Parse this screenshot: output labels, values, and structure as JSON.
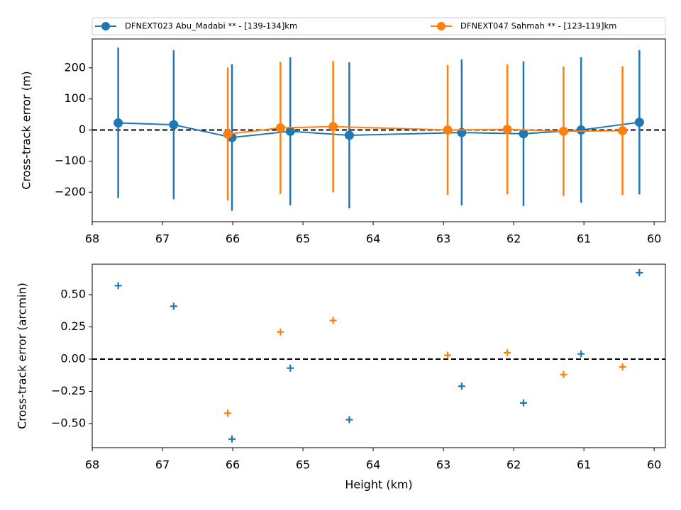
{
  "chart_data": [
    {
      "type": "line",
      "y_label": "Cross-track error (m)",
      "x": null,
      "xlim": [
        68,
        59.84
      ],
      "xticks": [
        68,
        67,
        66,
        65,
        64,
        63,
        62,
        61,
        60
      ],
      "ylim": [
        -295,
        293
      ],
      "yticks": [
        {
          "value": -200,
          "label": "−200"
        },
        {
          "value": -100,
          "label": "−100"
        },
        0,
        100,
        200
      ],
      "hline": 0,
      "legend": "top",
      "series": [
        {
          "name": "DFNEXT023 Abu_Madabi **  - [139-134]km",
          "color": "#1f77b4",
          "x": [
            67.63,
            66.84,
            66.01,
            65.18,
            64.34,
            62.74,
            61.86,
            61.04,
            60.21
          ],
          "values": [
            23,
            17,
            -24,
            -4,
            -17,
            -8,
            -12,
            0,
            25
          ],
          "errors": [
            242,
            240,
            236,
            238,
            235,
            235,
            233,
            234,
            232
          ]
        },
        {
          "name": "DFNEXT047 Sahmah **  - [123-119]km",
          "color": "#ff7f0e",
          "x": [
            66.07,
            65.32,
            64.57,
            62.94,
            62.09,
            61.29,
            60.45
          ],
          "values": [
            -13,
            7,
            11,
            0,
            2,
            -4,
            -2
          ],
          "errors": [
            214,
            212,
            211,
            209,
            209,
            208,
            207
          ]
        }
      ]
    },
    {
      "type": "scatter",
      "x_label": "Height (km)",
      "y_label": "Cross-track error (arcmin)",
      "xlim": [
        68,
        59.84
      ],
      "xticks": [
        68,
        67,
        66,
        65,
        64,
        63,
        62,
        61,
        60
      ],
      "ylim": [
        -0.687,
        0.736
      ],
      "yticks": [
        {
          "value": -0.5,
          "label": "−0.50"
        },
        {
          "value": -0.25,
          "label": "−0.25"
        },
        {
          "value": 0,
          "label": "0.00"
        },
        {
          "value": 0.25,
          "label": "0.25"
        },
        {
          "value": 0.5,
          "label": "0.50"
        }
      ],
      "hline": 0,
      "series": [
        {
          "color": "#1f77b4",
          "x": [
            67.63,
            66.84,
            66.01,
            65.18,
            64.34,
            62.74,
            61.86,
            61.04,
            60.21
          ],
          "values": [
            0.57,
            0.41,
            -0.62,
            -0.07,
            -0.47,
            -0.21,
            -0.34,
            0.04,
            0.67
          ]
        },
        {
          "color": "#ff7f0e",
          "x": [
            66.07,
            65.32,
            64.57,
            62.94,
            62.09,
            61.29,
            60.45
          ],
          "values": [
            -0.42,
            0.21,
            0.3,
            0.03,
            0.05,
            -0.12,
            -0.06
          ]
        }
      ]
    }
  ]
}
